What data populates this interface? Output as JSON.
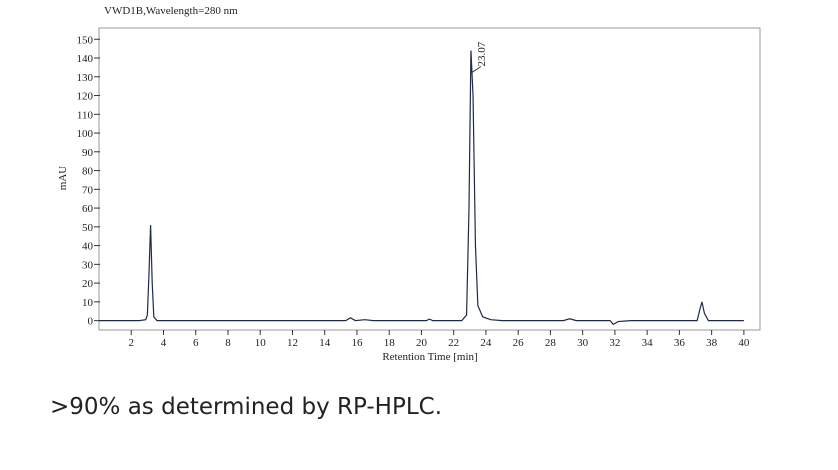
{
  "chart_data": {
    "type": "line",
    "title": "VWD1B,Wavelength=280 nm",
    "y_label": "mAU",
    "x_label": "Retention Time [min]",
    "x": [
      0,
      2.5,
      2.9,
      3.0,
      3.1,
      3.2,
      3.3,
      3.4,
      3.6,
      6,
      15.3,
      15.6,
      15.9,
      16.5,
      17,
      20.3,
      20.5,
      20.7,
      22.5,
      22.8,
      22.95,
      23.07,
      23.2,
      23.35,
      23.5,
      23.8,
      24.3,
      25,
      28.8,
      29.2,
      29.6,
      31.7,
      31.9,
      32.2,
      33,
      37.1,
      37.3,
      37.4,
      37.55,
      37.8,
      40
    ],
    "values": [
      0,
      0,
      0.5,
      3,
      25,
      51,
      20,
      2,
      0,
      0,
      0,
      1.5,
      0,
      0.5,
      0,
      0,
      0.8,
      0,
      0,
      3,
      60,
      144,
      120,
      40,
      8,
      2,
      0.5,
      0,
      0,
      1,
      0,
      0,
      -2,
      -0.5,
      0,
      0,
      7,
      10,
      4,
      0,
      0
    ],
    "color": "#1f2a4a",
    "xlim": [
      0,
      41
    ],
    "ylim": [
      -5,
      156
    ],
    "xticks": [
      2,
      4,
      6,
      8,
      10,
      12,
      14,
      16,
      18,
      20,
      22,
      24,
      26,
      28,
      30,
      32,
      34,
      36,
      38,
      40
    ],
    "yticks": [
      0,
      10,
      20,
      30,
      40,
      50,
      60,
      70,
      80,
      90,
      100,
      110,
      120,
      130,
      140,
      150
    ],
    "annotations": [
      {
        "text": "23.07",
        "x": 23.07
      }
    ]
  },
  "caption": ">90% as determined by RP-HPLC."
}
